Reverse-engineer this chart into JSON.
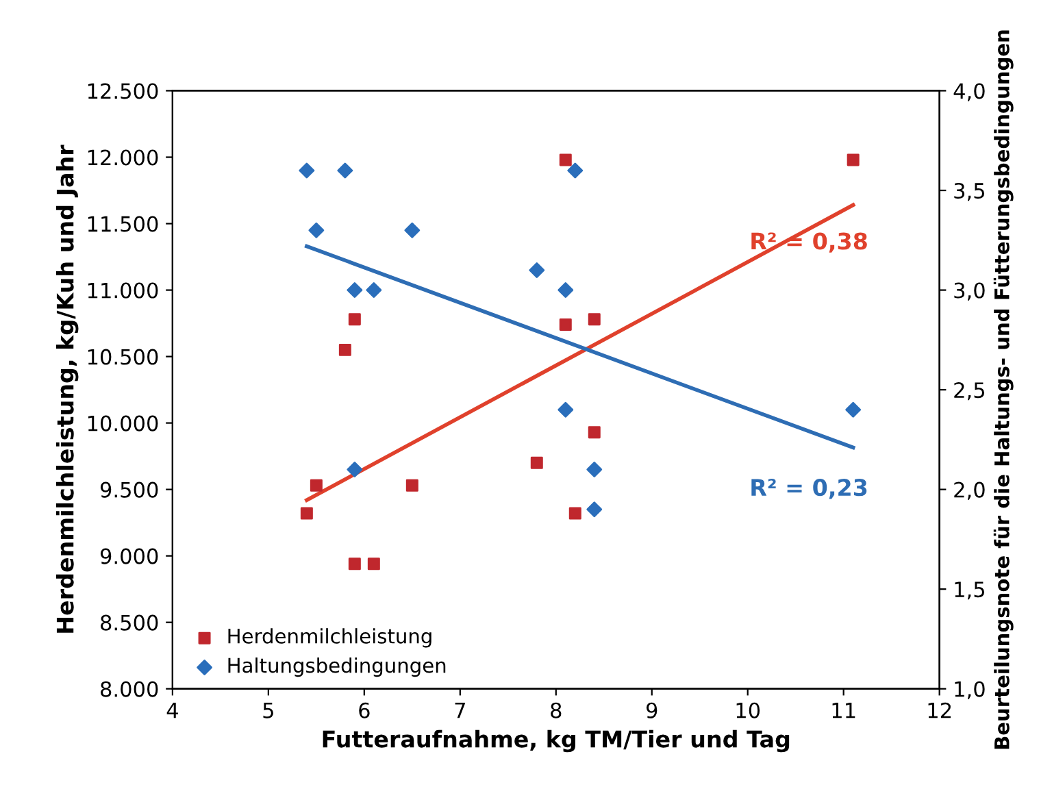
{
  "chart_data": {
    "type": "scatter",
    "xlabel": "Futteraufnahme, kg TM/Tier und Tag",
    "ylabel": "Herdenmilchleistung, kg/Kuh und Jahr",
    "y2label": "Beurteilungsnote für die Haltungs- und Fütterungsbedingungen",
    "xlim": [
      4,
      12
    ],
    "xticks": [
      4,
      5,
      6,
      7,
      8,
      9,
      10,
      11,
      12
    ],
    "ylim": [
      8000,
      12500
    ],
    "yticks": [
      {
        "value": 8000,
        "label": "8.000"
      },
      {
        "value": 8500,
        "label": "8.500"
      },
      {
        "value": 9000,
        "label": "9.000"
      },
      {
        "value": 9500,
        "label": "9.500"
      },
      {
        "value": 10000,
        "label": "10.000"
      },
      {
        "value": 10500,
        "label": "10.500"
      },
      {
        "value": 11000,
        "label": "11.000"
      },
      {
        "value": 11500,
        "label": "11.500"
      },
      {
        "value": 12000,
        "label": "12.000"
      },
      {
        "value": 12500,
        "label": "12.500"
      }
    ],
    "y2lim": [
      1.0,
      4.0
    ],
    "y2ticks": [
      {
        "value": 1.0,
        "label": "1,0"
      },
      {
        "value": 1.5,
        "label": "1,5"
      },
      {
        "value": 2.0,
        "label": "2,0"
      },
      {
        "value": 2.5,
        "label": "2,5"
      },
      {
        "value": 3.0,
        "label": "3,0"
      },
      {
        "value": 3.5,
        "label": "3,5"
      },
      {
        "value": 4.0,
        "label": "4,0"
      }
    ],
    "grid": false,
    "legend": "bottom left",
    "series": [
      {
        "name": "Herdenmilchleistung",
        "marker": "square",
        "color": "#c0272d",
        "x": [
          5.4,
          5.5,
          5.9,
          5.8,
          5.9,
          6.1,
          6.5,
          7.8,
          8.1,
          8.1,
          8.4,
          8.4,
          8.2,
          11.1
        ],
        "values": [
          9320,
          9530,
          10780,
          10550,
          8940,
          8940,
          9530,
          9700,
          11980,
          10740,
          10780,
          9930,
          9320,
          11980
        ]
      },
      {
        "name": "Haltungsbedingungen",
        "marker": "diamond",
        "axis": "y2",
        "color": "#2a6ebb",
        "x": [
          5.4,
          5.8,
          5.5,
          5.9,
          6.1,
          6.5,
          7.8,
          8.1,
          8.2,
          8.1,
          5.9,
          8.4,
          8.4,
          11.1
        ],
        "values": [
          3.6,
          3.6,
          3.3,
          3.0,
          3.0,
          3.3,
          3.1,
          3.0,
          3.6,
          2.4,
          2.1,
          2.1,
          1.9,
          2.4
        ]
      },
      {
        "type": "line",
        "marker": "none",
        "color": "#e0412c",
        "x": [
          5.4,
          11.1
        ],
        "values": [
          9420,
          11640
        ]
      },
      {
        "type": "line",
        "marker": "none",
        "axis": "y2",
        "color": "#2e6db4",
        "x": [
          5.4,
          11.1
        ],
        "values": [
          3.22,
          2.21
        ]
      }
    ],
    "annotations": [
      "R² = 0,38",
      "R² = 0,23"
    ]
  }
}
